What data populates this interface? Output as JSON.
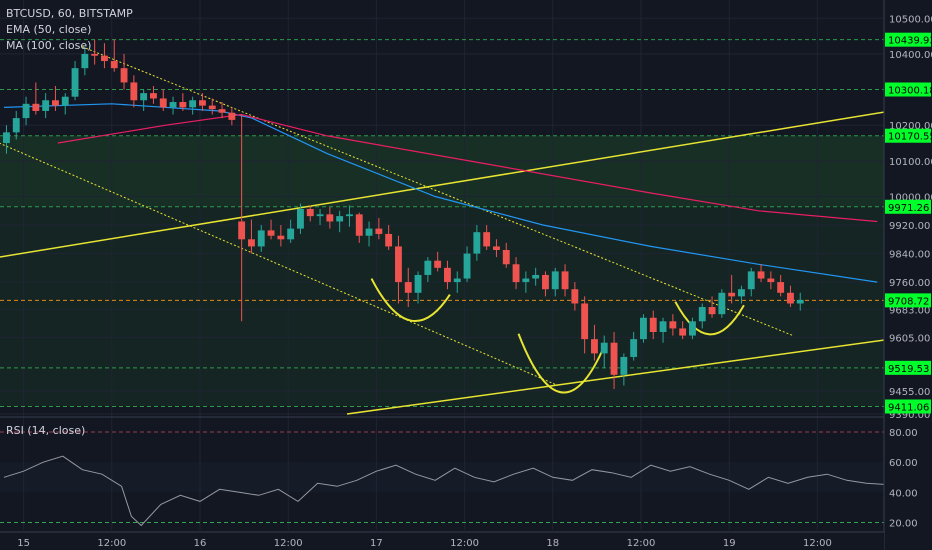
{
  "header": {
    "symbol": "BTCUSD, 60, BITSTAMP",
    "ema_label": "EMA (50, close)",
    "ma_label": "MA (100, close)",
    "rsi_label": "RSI (14, close)"
  },
  "colors": {
    "background": "#131722",
    "up": "#26a69a",
    "down": "#ef5350",
    "ema": "#2196f3",
    "ma": "#e91e63",
    "trendline": "#e7e432",
    "level_line": "#2fa84f",
    "price_tag": "#00ff2a",
    "current_level": "#f7931a"
  },
  "chart_data": {
    "type": "candlestick",
    "price_axis_ticks": [
      "10500.00",
      "10400.00",
      "10200.00",
      "10100.00",
      "10000.00",
      "9920.00",
      "9840.00",
      "9760.00",
      "9683.00",
      "9605.00",
      "9455.00",
      "9390.00"
    ],
    "price_ylim": [
      9390,
      10540
    ],
    "price_levels": [
      {
        "label": "10439.93",
        "value": 10439.93
      },
      {
        "label": "10300.18",
        "value": 10300.18
      },
      {
        "label": "10170.55",
        "value": 10170.55
      },
      {
        "label": "9971.26",
        "value": 9971.26
      },
      {
        "label": "9708.72",
        "value": 9708.72,
        "current": true
      },
      {
        "label": "9519.53",
        "value": 9519.53
      },
      {
        "label": "9411.06",
        "value": 9411.06
      }
    ],
    "x_axis_ticks": [
      "15",
      "12:00",
      "16",
      "12:00",
      "17",
      "12:00",
      "18",
      "12:00",
      "19",
      "12:00"
    ],
    "x_tick_index": [
      4,
      22,
      40,
      58,
      76,
      94,
      112,
      130,
      148,
      166
    ],
    "candles": [
      [
        10150,
        10200,
        10120,
        10180
      ],
      [
        10180,
        10240,
        10160,
        10220
      ],
      [
        10220,
        10280,
        10200,
        10260
      ],
      [
        10260,
        10320,
        10230,
        10240
      ],
      [
        10240,
        10290,
        10220,
        10270
      ],
      [
        10270,
        10310,
        10240,
        10255
      ],
      [
        10255,
        10290,
        10230,
        10280
      ],
      [
        10280,
        10380,
        10270,
        10360
      ],
      [
        10360,
        10420,
        10340,
        10400
      ],
      [
        10400,
        10440,
        10370,
        10395
      ],
      [
        10395,
        10430,
        10360,
        10380
      ],
      [
        10380,
        10440,
        10350,
        10360
      ],
      [
        10360,
        10400,
        10300,
        10320
      ],
      [
        10320,
        10340,
        10250,
        10270
      ],
      [
        10270,
        10300,
        10240,
        10290
      ],
      [
        10290,
        10310,
        10260,
        10275
      ],
      [
        10275,
        10300,
        10240,
        10250
      ],
      [
        10250,
        10280,
        10230,
        10265
      ],
      [
        10265,
        10290,
        10240,
        10250
      ],
      [
        10250,
        10280,
        10230,
        10270
      ],
      [
        10270,
        10290,
        10240,
        10255
      ],
      [
        10255,
        10275,
        10230,
        10245
      ],
      [
        10245,
        10265,
        10220,
        10235
      ],
      [
        10235,
        10250,
        10200,
        10215
      ],
      [
        9930,
        10230,
        9650,
        9880
      ],
      [
        9880,
        9935,
        9840,
        9860
      ],
      [
        9860,
        9920,
        9845,
        9905
      ],
      [
        9905,
        9935,
        9880,
        9890
      ],
      [
        9890,
        9920,
        9860,
        9880
      ],
      [
        9880,
        9935,
        9870,
        9910
      ],
      [
        9910,
        9980,
        9895,
        9965
      ],
      [
        9965,
        9975,
        9930,
        9945
      ],
      [
        9945,
        9965,
        9920,
        9950
      ],
      [
        9950,
        9970,
        9910,
        9930
      ],
      [
        9930,
        9960,
        9900,
        9945
      ],
      [
        9945,
        9975,
        9915,
        9950
      ],
      [
        9950,
        9955,
        9870,
        9890
      ],
      [
        9890,
        9930,
        9860,
        9910
      ],
      [
        9910,
        9940,
        9880,
        9895
      ],
      [
        9895,
        9920,
        9850,
        9860
      ],
      [
        9860,
        9890,
        9700,
        9760
      ],
      [
        9760,
        9800,
        9690,
        9730
      ],
      [
        9730,
        9790,
        9700,
        9780
      ],
      [
        9780,
        9830,
        9760,
        9820
      ],
      [
        9820,
        9845,
        9790,
        9800
      ],
      [
        9800,
        9820,
        9740,
        9760
      ],
      [
        9760,
        9790,
        9730,
        9770
      ],
      [
        9770,
        9860,
        9760,
        9840
      ],
      [
        9840,
        9920,
        9820,
        9900
      ],
      [
        9900,
        9920,
        9850,
        9860
      ],
      [
        9860,
        9880,
        9830,
        9850
      ],
      [
        9850,
        9870,
        9800,
        9810
      ],
      [
        9810,
        9830,
        9740,
        9760
      ],
      [
        9760,
        9790,
        9730,
        9770
      ],
      [
        9770,
        9800,
        9750,
        9780
      ],
      [
        9780,
        9790,
        9720,
        9740
      ],
      [
        9740,
        9800,
        9720,
        9790
      ],
      [
        9790,
        9810,
        9720,
        9740
      ],
      [
        9740,
        9760,
        9680,
        9700
      ],
      [
        9700,
        9720,
        9560,
        9600
      ],
      [
        9600,
        9640,
        9540,
        9560
      ],
      [
        9560,
        9610,
        9520,
        9590
      ],
      [
        9590,
        9620,
        9460,
        9500
      ],
      [
        9500,
        9560,
        9470,
        9550
      ],
      [
        9550,
        9620,
        9540,
        9600
      ],
      [
        9600,
        9670,
        9590,
        9660
      ],
      [
        9660,
        9680,
        9600,
        9620
      ],
      [
        9620,
        9660,
        9590,
        9650
      ],
      [
        9650,
        9670,
        9610,
        9630
      ],
      [
        9630,
        9650,
        9600,
        9610
      ],
      [
        9610,
        9660,
        9600,
        9650
      ],
      [
        9650,
        9700,
        9630,
        9690
      ],
      [
        9690,
        9720,
        9660,
        9670
      ],
      [
        9670,
        9740,
        9660,
        9730
      ],
      [
        9730,
        9780,
        9700,
        9720
      ],
      [
        9720,
        9750,
        9700,
        9740
      ],
      [
        9740,
        9800,
        9720,
        9790
      ],
      [
        9790,
        9810,
        9760,
        9770
      ],
      [
        9770,
        9790,
        9740,
        9760
      ],
      [
        9760,
        9780,
        9720,
        9730
      ],
      [
        9730,
        9750,
        9690,
        9700
      ],
      [
        9700,
        9730,
        9680,
        9710
      ]
    ],
    "ema_50": [
      [
        0,
        10250
      ],
      [
        10,
        10260
      ],
      [
        20,
        10240
      ],
      [
        23,
        10220
      ],
      [
        30,
        10120
      ],
      [
        40,
        10000
      ],
      [
        50,
        9920
      ],
      [
        60,
        9860
      ],
      [
        70,
        9810
      ],
      [
        81,
        9760
      ]
    ],
    "ma_100": [
      [
        5,
        10150
      ],
      [
        15,
        10200
      ],
      [
        22,
        10230
      ],
      [
        30,
        10170
      ],
      [
        45,
        10090
      ],
      [
        60,
        10010
      ],
      [
        70,
        9960
      ],
      [
        81,
        9930
      ]
    ],
    "rsi": {
      "label": "RSI (14, close)",
      "ticks": [
        "80.00",
        "60.00",
        "40.00",
        "20.00"
      ],
      "ylim": [
        15,
        88
      ],
      "values": [
        [
          0,
          50
        ],
        [
          4,
          54
        ],
        [
          8,
          60
        ],
        [
          12,
          64
        ],
        [
          16,
          55
        ],
        [
          20,
          52
        ],
        [
          24,
          44
        ],
        [
          26,
          24
        ],
        [
          28,
          18
        ],
        [
          32,
          32
        ],
        [
          36,
          38
        ],
        [
          40,
          34
        ],
        [
          44,
          42
        ],
        [
          48,
          40
        ],
        [
          52,
          38
        ],
        [
          56,
          42
        ],
        [
          60,
          34
        ],
        [
          64,
          46
        ],
        [
          68,
          44
        ],
        [
          72,
          48
        ],
        [
          76,
          54
        ],
        [
          80,
          58
        ],
        [
          84,
          52
        ],
        [
          88,
          48
        ],
        [
          92,
          56
        ],
        [
          96,
          50
        ],
        [
          100,
          47
        ],
        [
          104,
          52
        ],
        [
          108,
          56
        ],
        [
          112,
          50
        ],
        [
          116,
          48
        ],
        [
          120,
          55
        ],
        [
          124,
          53
        ],
        [
          128,
          50
        ],
        [
          132,
          58
        ],
        [
          136,
          54
        ],
        [
          140,
          57
        ],
        [
          144,
          52
        ],
        [
          148,
          48
        ],
        [
          152,
          42
        ],
        [
          156,
          50
        ],
        [
          160,
          46
        ],
        [
          164,
          50
        ],
        [
          168,
          52
        ],
        [
          172,
          48
        ],
        [
          176,
          46
        ],
        [
          181,
          45
        ]
      ]
    }
  }
}
